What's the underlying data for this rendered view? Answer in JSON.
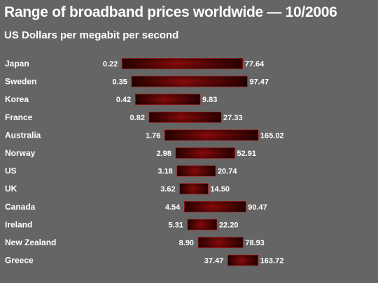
{
  "header": {
    "title": "Range of broadband prices worldwide — 10/2006",
    "subtitle": "US Dollars per megabit per second"
  },
  "colors": {
    "background": "#656565",
    "bar_dark": "#2a0000",
    "bar_mid": "#8a0a0a",
    "text": "#ffffff"
  },
  "chart_data": {
    "type": "bar",
    "orientation": "horizontal-range",
    "title": "Range of broadband prices worldwide — 10/2006",
    "subtitle": "US Dollars per megabit per second",
    "categories": [
      "Japan",
      "Sweden",
      "Korea",
      "France",
      "Australia",
      "Norway",
      "US",
      "UK",
      "Canada",
      "Ireland",
      "New Zealand",
      "Greece"
    ],
    "series": [
      {
        "min": [
          0.22,
          0.35,
          0.42,
          0.82,
          1.76,
          2.98,
          3.18,
          3.62,
          4.54,
          5.31,
          8.9,
          37.47
        ],
        "max": [
          77.64,
          97.47,
          9.83,
          27.33,
          165.02,
          52.91,
          20.74,
          14.5,
          90.47,
          22.2,
          78.93,
          163.72
        ]
      }
    ],
    "min_labels": [
      "0.22",
      "0.35",
      "0.42",
      "0.82",
      "1.76",
      "2.98",
      "3.18",
      "3.62",
      "4.54",
      "5.31",
      "8.90",
      "37.47"
    ],
    "max_labels": [
      "77.64",
      "97.47",
      "9.83",
      "27.33",
      "165.02",
      "52.91",
      "20.74",
      "14.50",
      "90.47",
      "22.20",
      "78.93",
      "163.72"
    ],
    "scale": "log",
    "grid": false,
    "legend": "none"
  }
}
